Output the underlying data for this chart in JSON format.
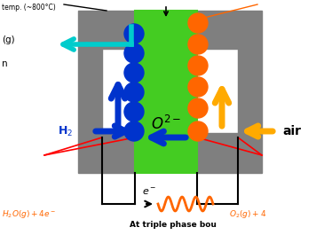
{
  "bg_color": "#ffffff",
  "gray_color": "#7f7f7f",
  "green_color": "#44cc22",
  "blue_color": "#0033cc",
  "orange_color": "#ff6600",
  "cyan_color": "#00cccc",
  "yellow_color": "#ffaa00",
  "black_color": "#000000",
  "red_color": "#ff0000",
  "dark_orange": "#cc5500",
  "o2minus_text": "$O^{2-}$",
  "h2_text": "H$_2$",
  "air_text": "air",
  "e_minus_text": "$e^-$",
  "h2o_text": "$H_2O(g)+4e^-$",
  "o2_text": "$O_2(g)+4$",
  "at_triple_text": "At triple phase bou",
  "figsize": [
    3.65,
    2.65
  ],
  "dpi": 100
}
